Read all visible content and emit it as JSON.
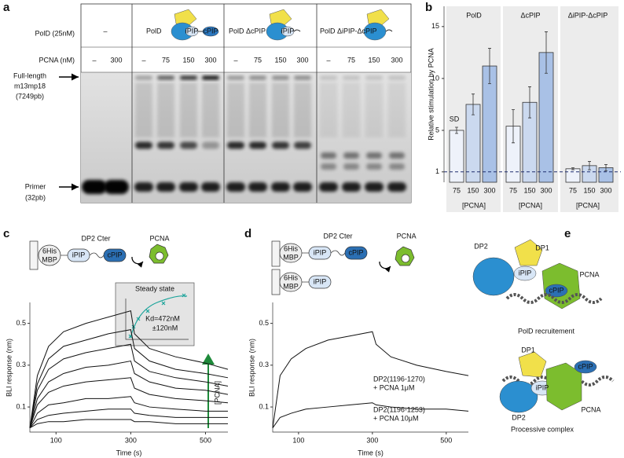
{
  "panel_labels": [
    "a",
    "b",
    "c",
    "d",
    "e"
  ],
  "gel": {
    "row_labels": [
      "PolD (25nM)",
      "PCNA (nM)"
    ],
    "groups": [
      "–",
      "PolD",
      "PolD ΔcPIP",
      "PolD ΔiPIP-ΔcPIP"
    ],
    "icon_labels": [
      "iPIP",
      "cPIP"
    ],
    "pcna_lanes": [
      "–",
      "300",
      "–",
      "75",
      "150",
      "300",
      "–",
      "75",
      "150",
      "300",
      "–",
      "75",
      "150",
      "300"
    ],
    "full_length_label": [
      "Full-length",
      "m13mp18",
      "(7249pb)"
    ],
    "primer_label": [
      "Primer",
      "(32pb)"
    ]
  },
  "chart_data": [
    {
      "type": "bar",
      "ylabel": "Relative stimulation by PCNA",
      "xlabel": "[PCNA]",
      "annotation": "SD",
      "categories": [
        "75",
        "150",
        "300"
      ],
      "colors": [
        "#eef2fa",
        "#cbd9ef",
        "#a9c1e6"
      ],
      "groups": [
        {
          "name": "PolD",
          "values": [
            5.0,
            7.5,
            11.2
          ],
          "errors": [
            0.3,
            1.0,
            1.7
          ]
        },
        {
          "name": "ΔcPIP",
          "values": [
            5.4,
            7.7,
            12.5
          ],
          "errors": [
            1.6,
            1.5,
            2.0
          ]
        },
        {
          "name": "ΔiPIP-ΔcPIP",
          "values": [
            1.3,
            1.6,
            1.4
          ],
          "errors": [
            0.1,
            0.4,
            0.3
          ]
        }
      ],
      "ylim": [
        0,
        16.5
      ],
      "yticks": [
        1,
        5,
        10,
        15
      ],
      "reference_line": 1
    },
    {
      "type": "line",
      "xlabel": "Time (s)",
      "ylabel": "BLI response (nm)",
      "x": [
        30,
        50,
        80,
        120,
        180,
        240,
        300,
        310,
        350,
        420,
        500,
        560
      ],
      "series": [
        {
          "color": "#111111",
          "values": [
            0,
            0.25,
            0.39,
            0.46,
            0.5,
            0.53,
            0.56,
            0.45,
            0.38,
            0.34,
            0.31,
            0.28
          ]
        },
        {
          "color": "#111111",
          "values": [
            0,
            0.21,
            0.33,
            0.39,
            0.42,
            0.45,
            0.47,
            0.38,
            0.32,
            0.28,
            0.26,
            0.24
          ]
        },
        {
          "color": "#111111",
          "values": [
            0,
            0.18,
            0.28,
            0.33,
            0.36,
            0.38,
            0.4,
            0.32,
            0.27,
            0.24,
            0.22,
            0.2
          ]
        },
        {
          "color": "#111111",
          "values": [
            0,
            0.14,
            0.22,
            0.26,
            0.29,
            0.3,
            0.32,
            0.26,
            0.22,
            0.19,
            0.18,
            0.16
          ]
        },
        {
          "color": "#111111",
          "values": [
            0,
            0.11,
            0.17,
            0.2,
            0.22,
            0.23,
            0.24,
            0.19,
            0.16,
            0.14,
            0.13,
            0.12
          ]
        },
        {
          "color": "#111111",
          "values": [
            0,
            0.07,
            0.11,
            0.12,
            0.14,
            0.14,
            0.15,
            0.12,
            0.1,
            0.09,
            0.08,
            0.08
          ]
        },
        {
          "color": "#111111",
          "values": [
            0,
            0.04,
            0.06,
            0.07,
            0.08,
            0.09,
            0.09,
            0.07,
            0.06,
            0.05,
            0.05,
            0.05
          ]
        },
        {
          "color": "#111111",
          "values": [
            0,
            0.02,
            0.03,
            0.03,
            0.04,
            0.04,
            0.04,
            0.03,
            0.03,
            0.02,
            0.02,
            0.02
          ]
        }
      ],
      "xlim": [
        30,
        560
      ],
      "xticks": [
        100,
        300,
        500
      ],
      "ylim": [
        -0.02,
        0.6
      ],
      "yticks": [
        0.1,
        0.3,
        0.5
      ],
      "inset": {
        "title": "Steady state",
        "text": [
          "Kd=472nM",
          "±120nM"
        ]
      },
      "arrow_label": "[PCNA]"
    },
    {
      "type": "line",
      "xlabel": "Time (s)",
      "ylabel": "BLI response (nm)",
      "x": [
        30,
        50,
        80,
        120,
        180,
        240,
        300,
        310,
        350,
        420,
        500,
        560
      ],
      "series": [
        {
          "color": "#111111",
          "values": [
            0,
            0.25,
            0.33,
            0.38,
            0.42,
            0.44,
            0.46,
            0.4,
            0.34,
            0.3,
            0.27,
            0.25
          ]
        },
        {
          "color": "#111111",
          "values": [
            0,
            0.05,
            0.07,
            0.09,
            0.1,
            0.11,
            0.12,
            0.11,
            0.1,
            0.09,
            0.09,
            0.08
          ]
        }
      ],
      "xlim": [
        30,
        560
      ],
      "xticks": [
        100,
        300,
        500
      ],
      "ylim": [
        -0.02,
        0.6
      ],
      "yticks": [
        0.1,
        0.3,
        0.5
      ],
      "annotations": [
        [
          "DP2(1196-1270)",
          "+ PCNA 1μM"
        ],
        [
          "DP2(1196-1253)",
          "+ PCNA 10μM"
        ]
      ]
    }
  ],
  "diagrams": {
    "c": {
      "construct": "DP2 Cter",
      "partner": "PCNA",
      "tag": [
        "6His",
        "MBP"
      ],
      "motifs": [
        "iPIP",
        "cPIP"
      ]
    },
    "d": {
      "construct": "DP2 Cter",
      "partner": "PCNA",
      "tag": [
        "6His",
        "MBP"
      ],
      "motifs": [
        "iPIP",
        "cPIP"
      ]
    },
    "e": {
      "top": {
        "labels": [
          "DP2",
          "DP1",
          "iPIP",
          "cPIP",
          "PCNA"
        ],
        "caption": "PolD recruitement"
      },
      "bottom": {
        "labels": [
          "DP1",
          "cPIP",
          "iPIP",
          "DP2",
          "PCNA"
        ],
        "caption": "Processive complex"
      }
    }
  }
}
